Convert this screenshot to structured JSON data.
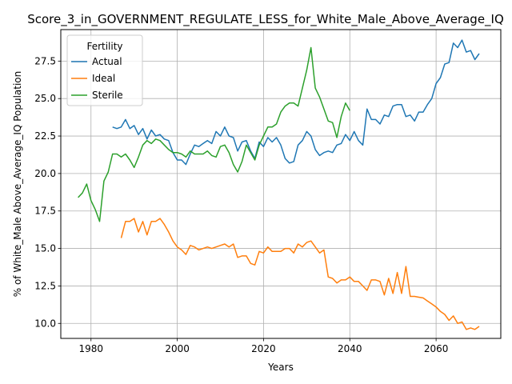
{
  "chart_data": {
    "type": "line",
    "title": "Score_3_in_GOVERNMENT_REGULATE_LESS_for_White_Male_Above_Average_IQ",
    "xlabel": "Years",
    "ylabel": "% of White_Male Above_Average_IQ Population",
    "xlim": [
      1973,
      2075
    ],
    "ylim": [
      9.0,
      29.6
    ],
    "xticks": [
      1980,
      2000,
      2020,
      2040,
      2060
    ],
    "xtick_labels": [
      "1980",
      "2000",
      "2020",
      "2040",
      "2060"
    ],
    "yticks": [
      10.0,
      12.5,
      15.0,
      17.5,
      20.0,
      22.5,
      25.0,
      27.5
    ],
    "ytick_labels": [
      "10.0",
      "12.5",
      "15.0",
      "17.5",
      "20.0",
      "22.5",
      "25.0",
      "27.5"
    ],
    "grid": true,
    "legend": {
      "title": "Fertility",
      "placement": "upper left"
    },
    "series": [
      {
        "name": "Actual",
        "color": "#1f77b4",
        "x": [
          1985,
          1986,
          1987,
          1988,
          1989,
          1990,
          1991,
          1992,
          1993,
          1994,
          1995,
          1996,
          1997,
          1998,
          1999,
          2000,
          2001,
          2002,
          2003,
          2004,
          2005,
          2006,
          2007,
          2008,
          2009,
          2010,
          2011,
          2012,
          2013,
          2014,
          2015,
          2016,
          2017,
          2018,
          2019,
          2020,
          2021,
          2022,
          2023,
          2024,
          2025,
          2026,
          2027,
          2028,
          2029,
          2030,
          2031,
          2032,
          2033,
          2034,
          2035,
          2036,
          2037,
          2038,
          2039,
          2040,
          2041,
          2042,
          2043,
          2044,
          2045,
          2046,
          2047,
          2048,
          2049,
          2050,
          2051,
          2052,
          2053,
          2054,
          2055,
          2056,
          2057,
          2058,
          2059,
          2060,
          2061,
          2062,
          2063,
          2064,
          2065,
          2066,
          2067,
          2068,
          2069,
          2070
        ],
        "values": [
          23.1,
          23.0,
          23.1,
          23.6,
          23.0,
          23.2,
          22.6,
          23.0,
          22.3,
          22.9,
          22.5,
          22.6,
          22.3,
          22.2,
          21.4,
          20.9,
          20.9,
          20.6,
          21.3,
          21.9,
          21.8,
          22.0,
          22.2,
          22.0,
          22.8,
          22.5,
          23.1,
          22.5,
          22.4,
          21.5,
          22.1,
          22.2,
          21.5,
          21.0,
          22.1,
          21.8,
          22.4,
          22.1,
          22.4,
          21.9,
          21.0,
          20.7,
          20.8,
          21.9,
          22.2,
          22.8,
          22.5,
          21.6,
          21.2,
          21.4,
          21.5,
          21.4,
          21.9,
          22.0,
          22.6,
          22.2,
          22.8,
          22.2,
          21.9,
          24.3,
          23.6,
          23.6,
          23.3,
          23.9,
          23.8,
          24.5,
          24.6,
          24.6,
          23.8,
          23.9,
          23.5,
          24.1,
          24.1,
          24.6,
          25.0,
          26.0,
          26.4,
          27.3,
          27.4,
          28.7,
          28.4,
          28.9,
          28.1,
          28.2,
          27.6,
          28.0
        ]
      },
      {
        "name": "Ideal",
        "color": "#ff7f0e",
        "x": [
          1987,
          1988,
          1989,
          1990,
          1991,
          1992,
          1993,
          1994,
          1995,
          1996,
          1997,
          1998,
          1999,
          2000,
          2001,
          2002,
          2003,
          2004,
          2005,
          2006,
          2007,
          2008,
          2009,
          2010,
          2011,
          2012,
          2013,
          2014,
          2015,
          2016,
          2017,
          2018,
          2019,
          2020,
          2021,
          2022,
          2023,
          2024,
          2025,
          2026,
          2027,
          2028,
          2029,
          2030,
          2031,
          2032,
          2033,
          2034,
          2035,
          2036,
          2037,
          2038,
          2039,
          2040,
          2041,
          2042,
          2043,
          2044,
          2045,
          2046,
          2047,
          2048,
          2049,
          2050,
          2051,
          2052,
          2053,
          2054,
          2055,
          2056,
          2057,
          2058,
          2059,
          2060,
          2061,
          2062,
          2063,
          2064,
          2065,
          2066,
          2067,
          2068,
          2069,
          2070
        ],
        "values": [
          15.7,
          16.8,
          16.8,
          17.0,
          16.1,
          16.8,
          15.9,
          16.8,
          16.8,
          17.0,
          16.6,
          16.1,
          15.5,
          15.1,
          14.9,
          14.6,
          15.2,
          15.1,
          14.9,
          15.0,
          15.1,
          15.0,
          15.1,
          15.2,
          15.3,
          15.1,
          15.3,
          14.4,
          14.5,
          14.5,
          14.0,
          13.9,
          14.8,
          14.7,
          15.1,
          14.8,
          14.8,
          14.8,
          15.0,
          15.0,
          14.7,
          15.3,
          15.1,
          15.4,
          15.5,
          15.1,
          14.7,
          14.9,
          13.1,
          13.0,
          12.7,
          12.9,
          12.9,
          13.1,
          12.8,
          12.8,
          12.5,
          12.2,
          12.9,
          12.9,
          12.8,
          11.9,
          13.0,
          12.0,
          13.4,
          12.0,
          13.8,
          11.8,
          11.8,
          11.75,
          11.7,
          11.5,
          11.3,
          11.1,
          10.8,
          10.6,
          10.2,
          10.5,
          10.0,
          10.1,
          9.6,
          9.7,
          9.6,
          9.8
        ]
      },
      {
        "name": "Sterile",
        "color": "#2ca02c",
        "x": [
          1977,
          1978,
          1979,
          1980,
          1981,
          1982,
          1983,
          1984,
          1985,
          1986,
          1987,
          1988,
          1989,
          1990,
          1991,
          1992,
          1993,
          1994,
          1995,
          1996,
          1997,
          1998,
          1999,
          2000,
          2001,
          2002,
          2003,
          2004,
          2005,
          2006,
          2007,
          2008,
          2009,
          2010,
          2011,
          2012,
          2013,
          2014,
          2015,
          2016,
          2017,
          2018,
          2019,
          2020,
          2021,
          2022,
          2023,
          2024,
          2025,
          2026,
          2027,
          2028,
          2029,
          2030,
          2031,
          2032,
          2033,
          2034,
          2035,
          2036,
          2037,
          2038,
          2039,
          2040
        ],
        "values": [
          18.4,
          18.7,
          19.3,
          18.2,
          17.6,
          16.8,
          19.5,
          20.1,
          21.3,
          21.3,
          21.1,
          21.3,
          20.9,
          20.4,
          21.1,
          21.9,
          22.2,
          22.0,
          22.3,
          22.2,
          21.9,
          21.6,
          21.4,
          21.4,
          21.3,
          21.1,
          21.5,
          21.3,
          21.3,
          21.3,
          21.5,
          21.2,
          21.1,
          21.8,
          21.9,
          21.4,
          20.6,
          20.1,
          20.8,
          21.9,
          21.4,
          20.9,
          21.9,
          22.5,
          23.1,
          23.1,
          23.3,
          24.1,
          24.5,
          24.7,
          24.7,
          24.5,
          25.7,
          26.9,
          28.4,
          25.7,
          25.1,
          24.3,
          23.5,
          23.4,
          22.4,
          23.8,
          24.7,
          24.2
        ]
      }
    ]
  }
}
